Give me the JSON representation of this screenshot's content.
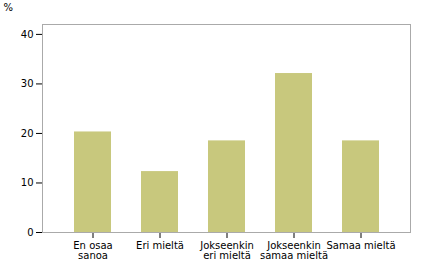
{
  "chart_data": {
    "type": "bar",
    "categories": [
      "En osaa\nsanoa",
      "Eri mieltä",
      "Jokseenkin\neri mieltä",
      "Jokseenkin\nsamaa mieltä",
      "Samaa mieltä"
    ],
    "values": [
      20.3,
      12.3,
      18.5,
      32.1,
      18.5
    ],
    "color": "#c8c87d",
    "ylabel": "%",
    "ylim": [
      0,
      42
    ],
    "yticks": [
      0,
      10,
      20,
      30,
      40
    ],
    "grid": false
  }
}
